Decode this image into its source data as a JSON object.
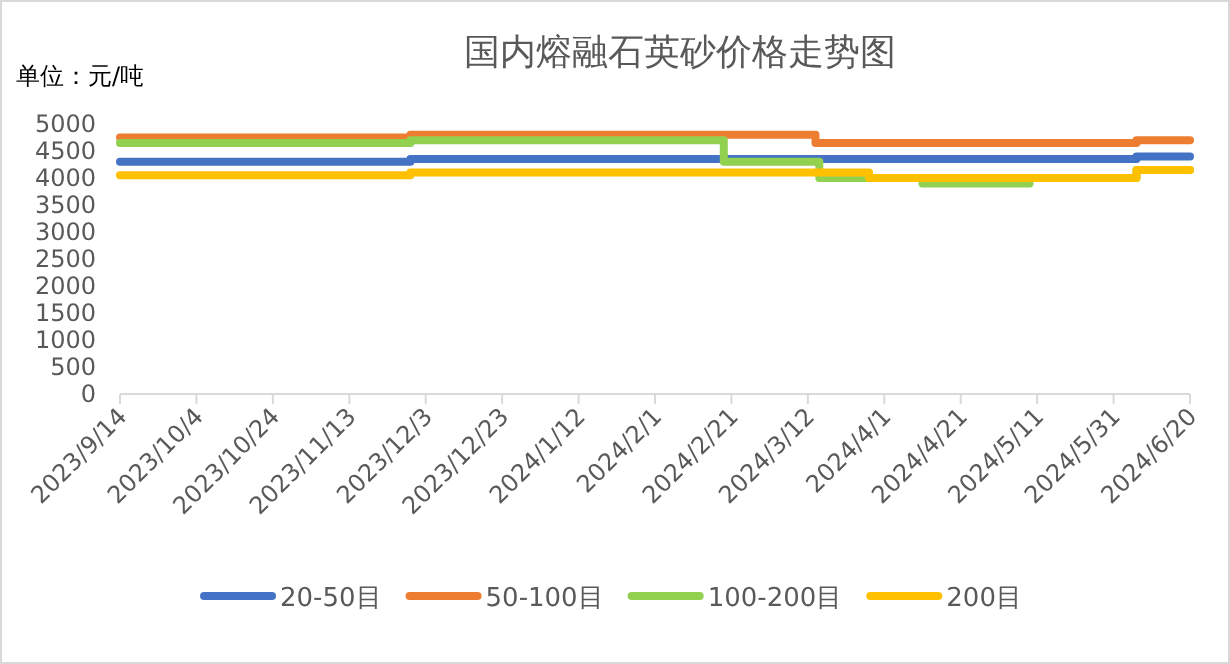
{
  "chart_data": {
    "type": "step",
    "title": "国内熔融石英砂价格走势图",
    "ylabel": "单位：元/吨",
    "xlim": [
      "2023-09-14",
      "2024-06-20"
    ],
    "xticks": [
      {
        "value": "2023-09-14",
        "label": "2023/9/14"
      },
      {
        "value": "2023-10-04",
        "label": "2023/10/4"
      },
      {
        "value": "2023-10-24",
        "label": "2023/10/24"
      },
      {
        "value": "2023-11-13",
        "label": "2023/11/13"
      },
      {
        "value": "2023-12-03",
        "label": "2023/12/3"
      },
      {
        "value": "2023-12-23",
        "label": "2023/12/23"
      },
      {
        "value": "2024-01-12",
        "label": "2024/1/12"
      },
      {
        "value": "2024-02-01",
        "label": "2024/2/1"
      },
      {
        "value": "2024-02-21",
        "label": "2024/2/21"
      },
      {
        "value": "2024-03-12",
        "label": "2024/3/12"
      },
      {
        "value": "2024-04-01",
        "label": "2024/4/1"
      },
      {
        "value": "2024-04-21",
        "label": "2024/4/21"
      },
      {
        "value": "2024-05-11",
        "label": "2024/5/11"
      },
      {
        "value": "2024-05-31",
        "label": "2024/5/31"
      },
      {
        "value": "2024-06-20",
        "label": "2024/6/20"
      }
    ],
    "ylim": [
      0,
      5000
    ],
    "yticks": [
      0,
      500,
      1000,
      1500,
      2000,
      2500,
      3000,
      3500,
      4000,
      4500,
      5000
    ],
    "grid": false,
    "legend": "bottom",
    "line_style": "solid",
    "marker": "none",
    "series": [
      {
        "name": "20-50目",
        "color": "#4472c4",
        "x": [
          "2023-09-14",
          "2023-11-29",
          "2024-06-06",
          "2024-06-20"
        ],
        "values": [
          4300,
          4350,
          4400,
          4400
        ]
      },
      {
        "name": "50-100目",
        "color": "#ed7d31",
        "x": [
          "2023-09-14",
          "2023-11-29",
          "2024-03-14",
          "2024-06-06",
          "2024-06-20"
        ],
        "values": [
          4750,
          4800,
          4650,
          4700,
          4700
        ]
      },
      {
        "name": "100-200目",
        "color": "#92d050",
        "x": [
          "2023-09-14",
          "2023-11-29",
          "2024-02-19",
          "2024-03-15",
          "2024-04-11",
          "2024-05-09",
          "2024-06-06",
          "2024-06-20"
        ],
        "values": [
          4650,
          4700,
          4300,
          4000,
          3900,
          4000,
          4150,
          4150
        ]
      },
      {
        "name": "200目",
        "color": "#ffc000",
        "x": [
          "2023-09-14",
          "2023-11-29",
          "2024-03-28",
          "2024-06-06",
          "2024-06-20"
        ],
        "values": [
          4050,
          4100,
          4000,
          4150,
          4150
        ]
      }
    ]
  }
}
